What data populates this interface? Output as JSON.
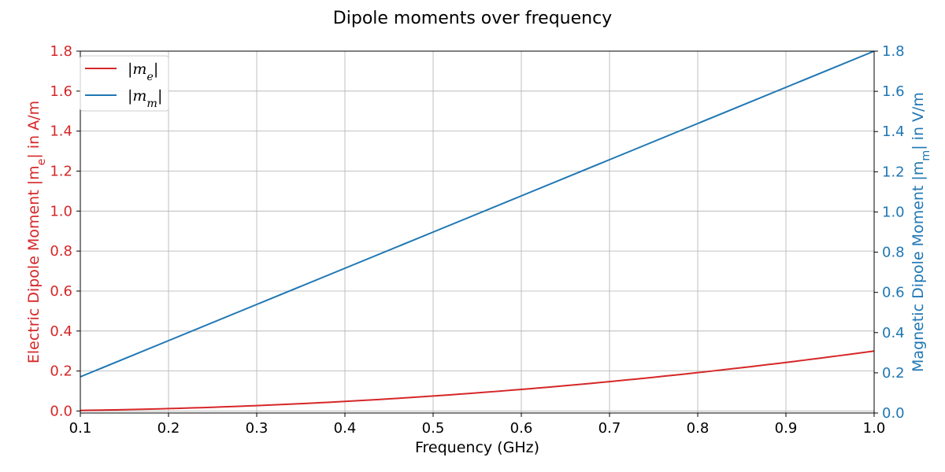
{
  "chart_data": {
    "type": "line",
    "title": "Dipole moments over frequency",
    "xlabel": "Frequency (GHz)",
    "ylabel_left": "Electric Dipole Moment |m_e| in A/m",
    "ylabel_right": "Magnetic Dipole Moment |m_m| in V/m",
    "xlim": [
      0.1,
      1.0
    ],
    "ylim_left": [
      -0.01,
      1.8
    ],
    "ylim_right": [
      0.0,
      1.8
    ],
    "x_ticks": [
      "0.1",
      "0.2",
      "0.3",
      "0.4",
      "0.5",
      "0.6",
      "0.7",
      "0.8",
      "0.9",
      "1.0"
    ],
    "y_ticks_left": [
      "0.0",
      "0.2",
      "0.4",
      "0.6",
      "0.8",
      "1.0",
      "1.2",
      "1.4",
      "1.6",
      "1.8"
    ],
    "y_ticks_right": [
      "0.0",
      "0.2",
      "0.4",
      "0.6",
      "0.8",
      "1.0",
      "1.2",
      "1.4",
      "1.6",
      "1.8"
    ],
    "grid": true,
    "legend_position": "top-left",
    "x": [
      0.1,
      0.2,
      0.3,
      0.4,
      0.5,
      0.6,
      0.7,
      0.8,
      0.9,
      1.0
    ],
    "series": [
      {
        "name": "|m_e|",
        "axis": "left",
        "color": "#d62728",
        "values": [
          0.003,
          0.012,
          0.027,
          0.048,
          0.075,
          0.108,
          0.147,
          0.192,
          0.243,
          0.3
        ]
      },
      {
        "name": "|m_m|",
        "axis": "right",
        "color": "#1f77b4",
        "values": [
          0.18,
          0.36,
          0.54,
          0.72,
          0.9,
          1.08,
          1.26,
          1.44,
          1.62,
          1.8
        ]
      }
    ]
  }
}
